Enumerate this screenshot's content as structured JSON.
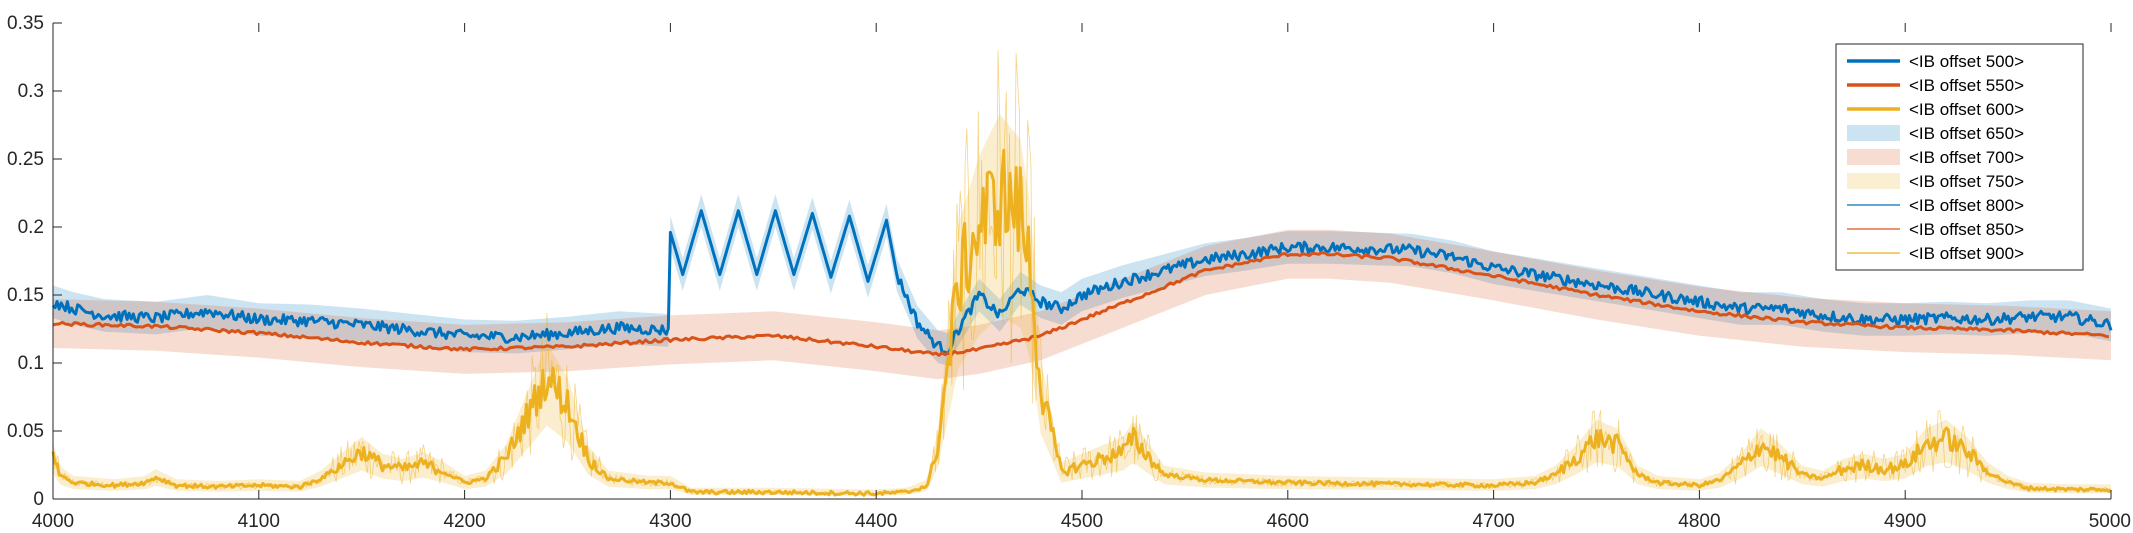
{
  "chart_data": {
    "type": "line",
    "title": "",
    "xlabel": "",
    "ylabel": "",
    "xlim": [
      4000,
      5000
    ],
    "ylim": [
      0,
      0.35
    ],
    "grid": false,
    "legend_position": "top-right",
    "x_ticks": [
      "4000",
      "4100",
      "4200",
      "4300",
      "4400",
      "4500",
      "4600",
      "4700",
      "4800",
      "4900",
      "5000"
    ],
    "y_ticks": [
      "0",
      "0.05",
      "0.1",
      "0.15",
      "0.2",
      "0.25",
      "0.3",
      "0.35"
    ],
    "x_tick_values": [
      4000,
      4100,
      4200,
      4300,
      4400,
      4500,
      4600,
      4700,
      4800,
      4900,
      5000
    ],
    "y_tick_values": [
      0,
      0.05,
      0.1,
      0.15,
      0.2,
      0.25,
      0.3,
      0.35
    ],
    "colors": {
      "blue": "#0072BD",
      "orange": "#D95319",
      "yellow": "#EDB120"
    },
    "legend": [
      {
        "label": "<IB offset 500>",
        "kind": "line-thick",
        "color": "#0072BD"
      },
      {
        "label": "<IB offset 550>",
        "kind": "line-thick",
        "color": "#D95319"
      },
      {
        "label": "<IB offset 600>",
        "kind": "line-thick",
        "color": "#EDB120"
      },
      {
        "label": "<IB offset 650>",
        "kind": "patch",
        "color": "#0072BD"
      },
      {
        "label": "<IB offset 700>",
        "kind": "patch",
        "color": "#D95319"
      },
      {
        "label": "<IB offset 750>",
        "kind": "patch",
        "color": "#EDB120"
      },
      {
        "label": "<IB offset 800>",
        "kind": "line-thin",
        "color": "#0072BD"
      },
      {
        "label": "<IB offset 850>",
        "kind": "line-thin",
        "color": "#D95319"
      },
      {
        "label": "<IB offset 900>",
        "kind": "line-thin",
        "color": "#EDB120"
      }
    ],
    "series": [
      {
        "name": "<IB offset 500>",
        "color": "#0072BD",
        "band": 0.012,
        "x": [
          4000,
          4010,
          4025,
          4050,
          4075,
          4100,
          4125,
          4150,
          4175,
          4200,
          4225,
          4250,
          4275,
          4299,
          4300,
          4306,
          4315,
          4324,
          4333,
          4342,
          4351,
          4360,
          4369,
          4378,
          4387,
          4396,
          4405,
          4410,
          4420,
          4430,
          4435,
          4440,
          4450,
          4460,
          4470,
          4480,
          4490,
          4500,
          4520,
          4540,
          4560,
          4580,
          4600,
          4620,
          4640,
          4660,
          4680,
          4700,
          4720,
          4740,
          4760,
          4780,
          4800,
          4820,
          4840,
          4860,
          4880,
          4900,
          4920,
          4940,
          4960,
          4980,
          5000
        ],
        "y": [
          0.145,
          0.14,
          0.135,
          0.133,
          0.138,
          0.132,
          0.131,
          0.128,
          0.124,
          0.12,
          0.119,
          0.122,
          0.126,
          0.124,
          0.196,
          0.165,
          0.212,
          0.165,
          0.212,
          0.165,
          0.212,
          0.165,
          0.21,
          0.163,
          0.208,
          0.16,
          0.205,
          0.165,
          0.13,
          0.112,
          0.11,
          0.125,
          0.15,
          0.135,
          0.155,
          0.145,
          0.14,
          0.15,
          0.16,
          0.168,
          0.176,
          0.18,
          0.185,
          0.185,
          0.184,
          0.183,
          0.178,
          0.17,
          0.165,
          0.16,
          0.155,
          0.15,
          0.145,
          0.14,
          0.14,
          0.135,
          0.132,
          0.132,
          0.133,
          0.132,
          0.134,
          0.134,
          0.128
        ]
      },
      {
        "name": "<IB offset 550>",
        "color": "#D95319",
        "band": 0.018,
        "x": [
          4000,
          4050,
          4100,
          4150,
          4200,
          4250,
          4300,
          4350,
          4400,
          4430,
          4450,
          4480,
          4500,
          4530,
          4560,
          4600,
          4620,
          4650,
          4700,
          4750,
          4800,
          4850,
          4900,
          4950,
          5000
        ],
        "y": [
          0.129,
          0.127,
          0.122,
          0.115,
          0.11,
          0.112,
          0.117,
          0.12,
          0.112,
          0.106,
          0.11,
          0.12,
          0.132,
          0.15,
          0.168,
          0.18,
          0.18,
          0.177,
          0.164,
          0.15,
          0.138,
          0.13,
          0.126,
          0.124,
          0.12
        ]
      },
      {
        "name": "<IB offset 600>",
        "color": "#EDB120",
        "x": [
          4000,
          4003,
          4010,
          4030,
          4045,
          4050,
          4060,
          4080,
          4100,
          4120,
          4130,
          4140,
          4150,
          4160,
          4170,
          4180,
          4190,
          4200,
          4210,
          4220,
          4230,
          4240,
          4250,
          4260,
          4270,
          4290,
          4300,
          4310,
          4350,
          4400,
          4415,
          4425,
          4430,
          4435,
          4440,
          4450,
          4460,
          4470,
          4475,
          4480,
          4490,
          4500,
          4510,
          4520,
          4525,
          4530,
          4540,
          4560,
          4600,
          4650,
          4700,
          4720,
          4730,
          4740,
          4750,
          4760,
          4765,
          4770,
          4780,
          4800,
          4810,
          4820,
          4830,
          4840,
          4850,
          4860,
          4870,
          4880,
          4890,
          4900,
          4910,
          4920,
          4930,
          4940,
          4950,
          4960,
          4980,
          5000
        ],
        "y": [
          0.032,
          0.018,
          0.012,
          0.01,
          0.012,
          0.016,
          0.01,
          0.009,
          0.01,
          0.009,
          0.015,
          0.025,
          0.035,
          0.025,
          0.022,
          0.026,
          0.02,
          0.012,
          0.015,
          0.03,
          0.06,
          0.09,
          0.07,
          0.03,
          0.015,
          0.012,
          0.012,
          0.005,
          0.005,
          0.004,
          0.005,
          0.01,
          0.04,
          0.1,
          0.16,
          0.2,
          0.225,
          0.21,
          0.17,
          0.08,
          0.02,
          0.025,
          0.03,
          0.035,
          0.045,
          0.035,
          0.018,
          0.014,
          0.012,
          0.011,
          0.01,
          0.012,
          0.018,
          0.03,
          0.045,
          0.04,
          0.03,
          0.018,
          0.012,
          0.01,
          0.014,
          0.025,
          0.04,
          0.03,
          0.018,
          0.015,
          0.022,
          0.025,
          0.022,
          0.025,
          0.04,
          0.045,
          0.035,
          0.02,
          0.012,
          0.008,
          0.007,
          0.007
        ]
      }
    ]
  }
}
